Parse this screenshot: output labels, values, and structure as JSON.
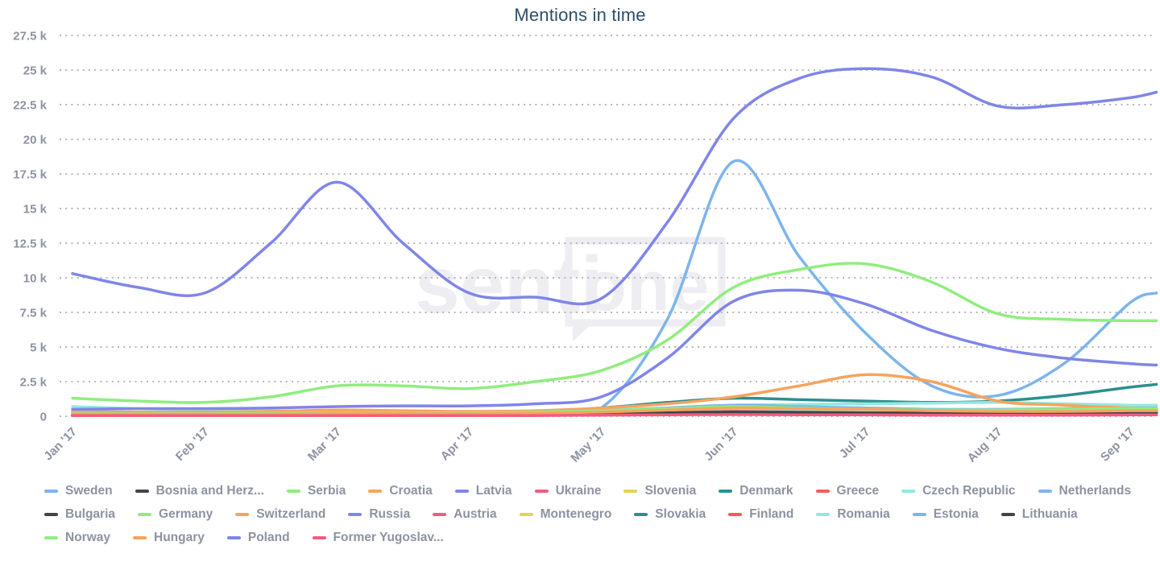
{
  "chart_data": {
    "type": "line",
    "title": "Mentions in time",
    "watermark": {
      "part1": "senti",
      "part2": "one"
    },
    "legend_position": "bottom",
    "grid": "horizontal dotted lines only",
    "x_tick_labels": [
      "Jan '17",
      "Feb '17",
      "Mar '17",
      "Apr '17",
      "May '17",
      "Jun '17",
      "Jul '17",
      "Aug '17",
      "Sep '17"
    ],
    "y_tick_labels": [
      "0",
      "2.5 k",
      "5 k",
      "7.5 k",
      "10 k",
      "12.5 k",
      "15 k",
      "17.5 k",
      "20 k",
      "22.5 k",
      "25 k",
      "27.5 k"
    ],
    "y_tick_step_k": 2.5,
    "ylim_k": [
      0,
      27.5
    ],
    "values_unit": "thousands of mentions",
    "x_note": "months after Jan '17; fractional values are intra-month samples read from the curves",
    "x": [
      0,
      0.5,
      1,
      1.5,
      2,
      2.5,
      3,
      3.5,
      4,
      4.5,
      5,
      5.5,
      6,
      6.5,
      7,
      7.5,
      8,
      8.2
    ],
    "series": [
      {
        "name": "Sweden",
        "color": "#7cb5ec",
        "values": [
          0.35,
          0.3,
          0.25,
          0.3,
          0.3,
          0.25,
          0.2,
          0.3,
          0.6,
          7.0,
          18.4,
          11.5,
          6.0,
          2.2,
          1.5,
          3.8,
          8.2,
          8.9
        ]
      },
      {
        "name": "Bosnia and Herz...",
        "color": "#434348",
        "values": [
          0.05,
          0.05,
          0.05,
          0.05,
          0.08,
          0.08,
          0.08,
          0.1,
          0.15,
          0.2,
          0.25,
          0.2,
          0.2,
          0.15,
          0.15,
          0.15,
          0.2,
          0.2
        ]
      },
      {
        "name": "Serbia",
        "color": "#90ed7d",
        "values": [
          0.1,
          0.1,
          0.1,
          0.1,
          0.12,
          0.12,
          0.1,
          0.12,
          0.2,
          0.3,
          0.4,
          0.35,
          0.3,
          0.25,
          0.25,
          0.3,
          0.35,
          0.35
        ]
      },
      {
        "name": "Croatia",
        "color": "#f7a35c",
        "values": [
          0.15,
          0.15,
          0.15,
          0.18,
          0.2,
          0.2,
          0.18,
          0.2,
          0.3,
          0.5,
          0.7,
          0.65,
          0.6,
          0.5,
          0.45,
          0.4,
          0.45,
          0.45
        ]
      },
      {
        "name": "Latvia",
        "color": "#8085e9",
        "values": [
          0.08,
          0.08,
          0.08,
          0.08,
          0.1,
          0.1,
          0.1,
          0.1,
          0.15,
          0.2,
          0.3,
          0.25,
          0.2,
          0.2,
          0.2,
          0.2,
          0.25,
          0.25
        ]
      },
      {
        "name": "Ukraine",
        "color": "#f15c80",
        "values": [
          0.1,
          0.1,
          0.1,
          0.1,
          0.12,
          0.12,
          0.1,
          0.12,
          0.2,
          0.35,
          0.45,
          0.4,
          0.35,
          0.3,
          0.3,
          0.3,
          0.35,
          0.35
        ]
      },
      {
        "name": "Slovenia",
        "color": "#e4d354",
        "values": [
          0.05,
          0.05,
          0.05,
          0.05,
          0.06,
          0.06,
          0.06,
          0.08,
          0.1,
          0.15,
          0.2,
          0.18,
          0.15,
          0.12,
          0.12,
          0.12,
          0.15,
          0.15
        ]
      },
      {
        "name": "Denmark",
        "color": "#2b908f",
        "values": [
          0.15,
          0.15,
          0.15,
          0.18,
          0.25,
          0.25,
          0.25,
          0.35,
          0.6,
          1.0,
          1.3,
          1.2,
          1.1,
          1.0,
          1.1,
          1.5,
          2.1,
          2.3
        ]
      },
      {
        "name": "Greece",
        "color": "#f45b5b",
        "values": [
          0.1,
          0.1,
          0.1,
          0.1,
          0.12,
          0.12,
          0.12,
          0.15,
          0.3,
          0.5,
          0.6,
          0.55,
          0.5,
          0.45,
          0.45,
          0.4,
          0.4,
          0.4
        ]
      },
      {
        "name": "Czech Republic",
        "color": "#91e8e1",
        "values": [
          0.7,
          0.55,
          0.45,
          0.4,
          0.38,
          0.35,
          0.32,
          0.35,
          0.45,
          0.6,
          0.8,
          0.85,
          0.9,
          0.95,
          1.0,
          0.9,
          0.8,
          0.8
        ]
      },
      {
        "name": "Netherlands",
        "color": "#7cb5ec",
        "values": [
          0.3,
          0.28,
          0.25,
          0.25,
          0.28,
          0.26,
          0.25,
          0.3,
          0.4,
          0.6,
          0.8,
          0.7,
          0.6,
          0.5,
          0.5,
          0.55,
          0.6,
          0.6
        ]
      },
      {
        "name": "Bulgaria",
        "color": "#434348",
        "values": [
          0.1,
          0.1,
          0.1,
          0.1,
          0.12,
          0.12,
          0.12,
          0.15,
          0.25,
          0.35,
          0.45,
          0.4,
          0.38,
          0.35,
          0.35,
          0.3,
          0.3,
          0.3
        ]
      },
      {
        "name": "Germany",
        "color": "#90ed7d",
        "values": [
          1.3,
          1.1,
          1.0,
          1.4,
          2.2,
          2.2,
          2.0,
          2.5,
          3.3,
          5.5,
          9.3,
          10.6,
          11.0,
          9.7,
          7.4,
          7.0,
          6.9,
          6.9
        ]
      },
      {
        "name": "Switzerland",
        "color": "#f7a35c",
        "values": [
          0.3,
          0.3,
          0.3,
          0.35,
          0.45,
          0.4,
          0.35,
          0.4,
          0.6,
          0.9,
          1.4,
          2.2,
          3.0,
          2.5,
          1.1,
          0.8,
          0.6,
          0.55
        ]
      },
      {
        "name": "Russia",
        "color": "#8085e9",
        "values": [
          0.5,
          0.55,
          0.55,
          0.6,
          0.7,
          0.75,
          0.75,
          0.9,
          1.4,
          4.2,
          8.3,
          9.1,
          8.1,
          6.2,
          4.9,
          4.2,
          3.8,
          3.7
        ]
      },
      {
        "name": "Austria",
        "color": "#f15c80",
        "values": [
          0.12,
          0.12,
          0.12,
          0.12,
          0.15,
          0.15,
          0.15,
          0.18,
          0.25,
          0.4,
          0.5,
          0.45,
          0.4,
          0.35,
          0.35,
          0.3,
          0.3,
          0.3
        ]
      },
      {
        "name": "Montenegro",
        "color": "#e4d354",
        "values": [
          0.04,
          0.04,
          0.04,
          0.04,
          0.05,
          0.05,
          0.05,
          0.06,
          0.08,
          0.12,
          0.15,
          0.12,
          0.1,
          0.1,
          0.1,
          0.1,
          0.1,
          0.1
        ]
      },
      {
        "name": "Slovakia",
        "color": "#2b908f",
        "values": [
          0.1,
          0.1,
          0.1,
          0.12,
          0.15,
          0.15,
          0.15,
          0.2,
          0.3,
          0.45,
          0.55,
          0.5,
          0.45,
          0.4,
          0.35,
          0.4,
          0.45,
          0.45
        ]
      },
      {
        "name": "Finland",
        "color": "#f45b5b",
        "values": [
          0.08,
          0.08,
          0.08,
          0.08,
          0.1,
          0.1,
          0.1,
          0.12,
          0.2,
          0.3,
          0.4,
          0.35,
          0.3,
          0.25,
          0.25,
          0.25,
          0.3,
          0.3
        ]
      },
      {
        "name": "Romania",
        "color": "#91e8e1",
        "values": [
          0.2,
          0.18,
          0.18,
          0.18,
          0.2,
          0.2,
          0.2,
          0.22,
          0.3,
          0.45,
          0.55,
          0.5,
          0.45,
          0.45,
          0.45,
          0.5,
          0.55,
          0.55
        ]
      },
      {
        "name": "Estonia",
        "color": "#7cb5ec",
        "values": [
          0.1,
          0.1,
          0.1,
          0.1,
          0.1,
          0.1,
          0.1,
          0.12,
          0.15,
          0.2,
          0.3,
          0.25,
          0.2,
          0.2,
          0.2,
          0.25,
          0.3,
          0.3
        ]
      },
      {
        "name": "Lithuania",
        "color": "#434348",
        "values": [
          0.08,
          0.08,
          0.08,
          0.08,
          0.1,
          0.1,
          0.1,
          0.12,
          0.18,
          0.25,
          0.3,
          0.28,
          0.25,
          0.22,
          0.2,
          0.2,
          0.25,
          0.25
        ]
      },
      {
        "name": "Norway",
        "color": "#90ed7d",
        "values": [
          0.2,
          0.2,
          0.2,
          0.22,
          0.25,
          0.25,
          0.25,
          0.3,
          0.4,
          0.55,
          0.7,
          0.6,
          0.5,
          0.45,
          0.45,
          0.5,
          0.55,
          0.55
        ]
      },
      {
        "name": "Hungary",
        "color": "#f7a35c",
        "values": [
          0.15,
          0.15,
          0.15,
          0.15,
          0.2,
          0.2,
          0.18,
          0.22,
          0.3,
          0.45,
          0.6,
          0.55,
          0.5,
          0.4,
          0.35,
          0.35,
          0.4,
          0.4
        ]
      },
      {
        "name": "Poland",
        "color": "#8085e9",
        "values": [
          10.3,
          9.3,
          8.9,
          12.5,
          16.9,
          12.5,
          8.9,
          8.6,
          8.5,
          14.0,
          21.5,
          24.4,
          25.1,
          24.5,
          22.4,
          22.5,
          23.0,
          23.4
        ]
      },
      {
        "name": "Former Yugoslav...",
        "color": "#f15c80",
        "values": [
          0.05,
          0.05,
          0.05,
          0.05,
          0.05,
          0.05,
          0.05,
          0.05,
          0.08,
          0.1,
          0.12,
          0.1,
          0.1,
          0.08,
          0.08,
          0.08,
          0.1,
          0.1
        ]
      }
    ]
  },
  "styles": {
    "title_color": "#2e4e6b",
    "label_color": "#8d92a2",
    "grid_color": "#b4b6c0",
    "watermark_color": "#eeeef2",
    "background": "#ffffff"
  }
}
